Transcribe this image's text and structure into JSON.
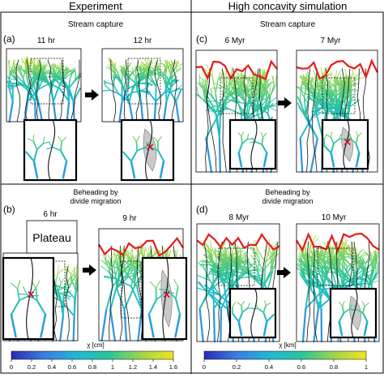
{
  "headers": {
    "left": "Experiment",
    "right": "High concavity simulation"
  },
  "panels": {
    "a": {
      "letter": "(a)",
      "title": "Stream capture",
      "t1": "11 hr",
      "t2": "12 hr"
    },
    "b": {
      "letter": "(b)",
      "title_line1": "Beheading by",
      "title_line2": "divide migration",
      "t1": "6 hr",
      "t2": "9 hr",
      "plateau": "Plateau"
    },
    "c": {
      "letter": "(c)",
      "title": "Stream capture",
      "t1": "6 Myr",
      "t2": "7 Myr"
    },
    "d": {
      "letter": "(d)",
      "title_line1": "Beheading by",
      "title_line2": "divide migration",
      "t1": "8 Myr",
      "t2": "10 Myr"
    }
  },
  "colorbars": {
    "left": {
      "label": "χ [cm]",
      "ticks": [
        "0",
        "0.2",
        "0.4",
        "0.6",
        "0.8",
        "1",
        "1.2",
        "1.4",
        "1.6"
      ]
    },
    "right": {
      "label": "χ [km]",
      "ticks": [
        "0",
        "0.2",
        "0.4",
        "0.6",
        "0.8",
        "1"
      ]
    }
  },
  "colors": {
    "low": "#3b3bd6",
    "mid": "#22c4b4",
    "high": "#f2e21a",
    "divide": "#e51c1c",
    "capture_marker": "#c8102e",
    "inset_border": "#000000"
  }
}
